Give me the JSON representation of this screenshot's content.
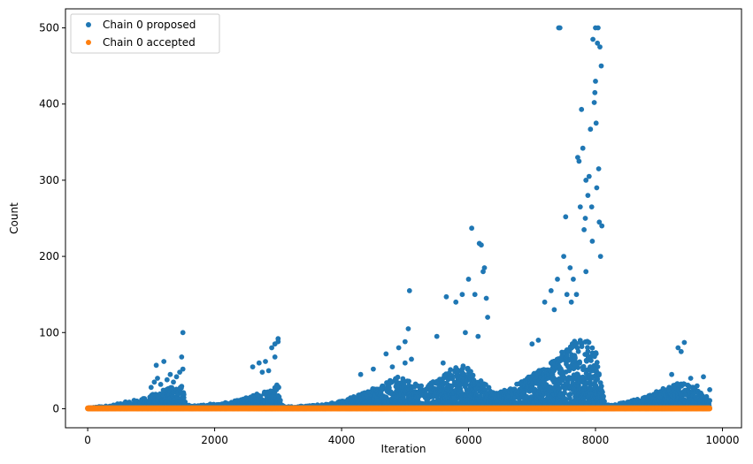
{
  "chart_data": {
    "type": "scatter",
    "xlabel": "Iteration",
    "ylabel": "Count",
    "xlim": [
      -350,
      10300
    ],
    "ylim": [
      -25,
      525
    ],
    "xticks": [
      0,
      2000,
      4000,
      6000,
      8000,
      10000
    ],
    "yticks": [
      0,
      100,
      200,
      300,
      400,
      500
    ],
    "xtick_labels": [
      "0",
      "2000",
      "4000",
      "6000",
      "8000",
      "10000"
    ],
    "ytick_labels": [
      "0",
      "100",
      "200",
      "300",
      "400",
      "500"
    ],
    "grid": false,
    "legend_position": "top-left",
    "series": [
      {
        "name": "Chain 0 proposed",
        "color": "#1f77b4",
        "points": [
          [
            1000,
            28
          ],
          [
            1050,
            35
          ],
          [
            1100,
            40
          ],
          [
            1150,
            32
          ],
          [
            1200,
            62
          ],
          [
            1250,
            38
          ],
          [
            1300,
            45
          ],
          [
            1350,
            35
          ],
          [
            1400,
            42
          ],
          [
            1450,
            48
          ],
          [
            1480,
            68
          ],
          [
            1500,
            100
          ],
          [
            1500,
            52
          ],
          [
            1080,
            57
          ],
          [
            2600,
            55
          ],
          [
            2700,
            60
          ],
          [
            2800,
            62
          ],
          [
            2900,
            80
          ],
          [
            2950,
            85
          ],
          [
            3000,
            92
          ],
          [
            3000,
            88
          ],
          [
            2950,
            68
          ],
          [
            2850,
            50
          ],
          [
            2750,
            48
          ],
          [
            4300,
            45
          ],
          [
            4500,
            52
          ],
          [
            4700,
            72
          ],
          [
            4800,
            55
          ],
          [
            4900,
            80
          ],
          [
            5000,
            88
          ],
          [
            5050,
            105
          ],
          [
            5070,
            155
          ],
          [
            5100,
            65
          ],
          [
            5000,
            60
          ],
          [
            5500,
            95
          ],
          [
            5600,
            60
          ],
          [
            5650,
            147
          ],
          [
            5800,
            140
          ],
          [
            5900,
            150
          ],
          [
            5950,
            100
          ],
          [
            6000,
            170
          ],
          [
            6050,
            237
          ],
          [
            6100,
            150
          ],
          [
            6150,
            95
          ],
          [
            6170,
            217
          ],
          [
            6200,
            215
          ],
          [
            6230,
            180
          ],
          [
            6250,
            185
          ],
          [
            6280,
            145
          ],
          [
            6300,
            120
          ],
          [
            7000,
            85
          ],
          [
            7100,
            90
          ],
          [
            7200,
            140
          ],
          [
            7300,
            155
          ],
          [
            7350,
            130
          ],
          [
            7400,
            170
          ],
          [
            7420,
            500
          ],
          [
            7440,
            500
          ],
          [
            7500,
            200
          ],
          [
            7530,
            252
          ],
          [
            7550,
            150
          ],
          [
            7600,
            185
          ],
          [
            7620,
            140
          ],
          [
            7650,
            170
          ],
          [
            7700,
            150
          ],
          [
            7720,
            330
          ],
          [
            7740,
            325
          ],
          [
            7760,
            265
          ],
          [
            7780,
            393
          ],
          [
            7800,
            342
          ],
          [
            7820,
            235
          ],
          [
            7840,
            250
          ],
          [
            7850,
            300
          ],
          [
            7880,
            280
          ],
          [
            7900,
            305
          ],
          [
            7920,
            367
          ],
          [
            7940,
            265
          ],
          [
            7960,
            485
          ],
          [
            7980,
            402
          ],
          [
            7990,
            415
          ],
          [
            8000,
            500
          ],
          [
            8000,
            430
          ],
          [
            8010,
            375
          ],
          [
            8020,
            290
          ],
          [
            8030,
            480
          ],
          [
            8040,
            500
          ],
          [
            8050,
            315
          ],
          [
            8060,
            245
          ],
          [
            8070,
            475
          ],
          [
            8080,
            200
          ],
          [
            8090,
            450
          ],
          [
            8100,
            240
          ],
          [
            7850,
            180
          ],
          [
            7950,
            220
          ],
          [
            9200,
            45
          ],
          [
            9300,
            80
          ],
          [
            9350,
            75
          ],
          [
            9400,
            87
          ],
          [
            9500,
            40
          ],
          [
            9600,
            30
          ],
          [
            9700,
            42
          ],
          [
            9800,
            25
          ]
        ],
        "envelope_x": [
          0,
          100,
          200,
          300,
          400,
          500,
          600,
          700,
          800,
          900,
          1000,
          1100,
          1200,
          1300,
          1400,
          1500,
          1550,
          1700,
          1800,
          2000,
          2200,
          2400,
          2600,
          2800,
          3000,
          3050,
          3100,
          3300,
          3500,
          3700,
          3900,
          4100,
          4300,
          4500,
          4700,
          4900,
          5100,
          5300,
          5500,
          5700,
          5900,
          6100,
          6300,
          6400,
          6600,
          6800,
          7000,
          7200,
          7400,
          7600,
          7800,
          8000,
          8100,
          8150,
          8300,
          8500,
          8700,
          8900,
          9100,
          9300,
          9500,
          9700,
          9800
        ],
        "envelope_y": [
          1,
          2,
          3,
          4,
          5,
          7,
          9,
          11,
          13,
          14,
          18,
          22,
          25,
          28,
          30,
          32,
          5,
          4,
          5,
          7,
          8,
          12,
          18,
          25,
          35,
          6,
          3,
          3,
          4,
          6,
          9,
          14,
          20,
          28,
          35,
          42,
          35,
          30,
          38,
          52,
          60,
          45,
          30,
          20,
          25,
          35,
          45,
          55,
          70,
          85,
          95,
          80,
          30,
          6,
          5,
          10,
          14,
          20,
          28,
          35,
          30,
          20,
          12
        ]
      },
      {
        "name": "Chain 0 accepted",
        "color": "#ff7f0e",
        "x_range": [
          0,
          9800
        ],
        "y_values": [
          0,
          1
        ]
      }
    ]
  }
}
